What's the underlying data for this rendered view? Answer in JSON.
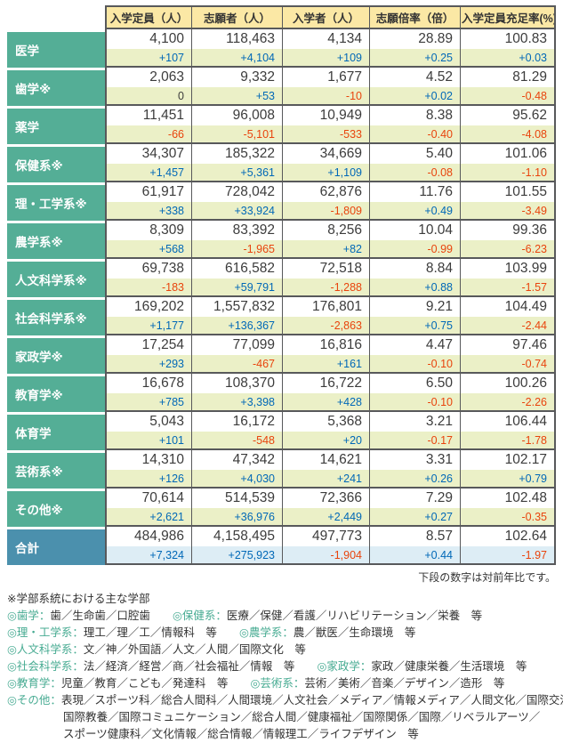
{
  "chart_data": {
    "type": "table",
    "columns": [
      "入学定員（人）",
      "志願者（人）",
      "入学者（人）",
      "志願倍率（倍）",
      "入学定員充足率(%)"
    ],
    "note": "下段の数字は対前年比です。",
    "rows": [
      {
        "label": "医学",
        "total": false,
        "main": [
          "4,100",
          "118,463",
          "4,134",
          "28.89",
          "100.83"
        ],
        "delta": [
          "+107",
          "+4,104",
          "+109",
          "+0.25",
          "+0.03"
        ]
      },
      {
        "label": "歯学※",
        "total": false,
        "main": [
          "2,063",
          "9,332",
          "1,677",
          "4.52",
          "81.29"
        ],
        "delta": [
          "0",
          "+53",
          "-10",
          "+0.02",
          "-0.48"
        ]
      },
      {
        "label": "薬学",
        "total": false,
        "main": [
          "11,451",
          "96,008",
          "10,949",
          "8.38",
          "95.62"
        ],
        "delta": [
          "-66",
          "-5,101",
          "-533",
          "-0.40",
          "-4.08"
        ]
      },
      {
        "label": "保健系※",
        "total": false,
        "main": [
          "34,307",
          "185,322",
          "34,669",
          "5.40",
          "101.06"
        ],
        "delta": [
          "+1,457",
          "+5,361",
          "+1,109",
          "-0.08",
          "-1.10"
        ]
      },
      {
        "label": "理・工学系※",
        "total": false,
        "main": [
          "61,917",
          "728,042",
          "62,876",
          "11.76",
          "101.55"
        ],
        "delta": [
          "+338",
          "+33,924",
          "-1,809",
          "+0.49",
          "-3.49"
        ]
      },
      {
        "label": "農学系※",
        "total": false,
        "main": [
          "8,309",
          "83,392",
          "8,256",
          "10.04",
          "99.36"
        ],
        "delta": [
          "+568",
          "-1,965",
          "+82",
          "-0.99",
          "-6.23"
        ]
      },
      {
        "label": "人文科学系※",
        "total": false,
        "main": [
          "69,738",
          "616,582",
          "72,518",
          "8.84",
          "103.99"
        ],
        "delta": [
          "-183",
          "+59,791",
          "-1,288",
          "+0.88",
          "-1.57"
        ]
      },
      {
        "label": "社会科学系※",
        "total": false,
        "main": [
          "169,202",
          "1,557,832",
          "176,801",
          "9.21",
          "104.49"
        ],
        "delta": [
          "+1,177",
          "+136,367",
          "-2,863",
          "+0.75",
          "-2.44"
        ]
      },
      {
        "label": "家政学※",
        "total": false,
        "main": [
          "17,254",
          "77,099",
          "16,816",
          "4.47",
          "97.46"
        ],
        "delta": [
          "+293",
          "-467",
          "+161",
          "-0.10",
          "-0.74"
        ]
      },
      {
        "label": "教育学※",
        "total": false,
        "main": [
          "16,678",
          "108,370",
          "16,722",
          "6.50",
          "100.26"
        ],
        "delta": [
          "+785",
          "+3,398",
          "+428",
          "-0.10",
          "-2.26"
        ]
      },
      {
        "label": "体育学",
        "total": false,
        "main": [
          "5,043",
          "16,172",
          "5,368",
          "3.21",
          "106.44"
        ],
        "delta": [
          "+101",
          "-548",
          "+20",
          "-0.17",
          "-1.78"
        ]
      },
      {
        "label": "芸術系※",
        "total": false,
        "main": [
          "14,310",
          "47,342",
          "14,621",
          "3.31",
          "102.17"
        ],
        "delta": [
          "+126",
          "+4,030",
          "+241",
          "+0.26",
          "+0.79"
        ]
      },
      {
        "label": "その他※",
        "total": false,
        "main": [
          "70,614",
          "514,539",
          "72,366",
          "7.29",
          "102.48"
        ],
        "delta": [
          "+2,621",
          "+36,976",
          "+2,449",
          "+0.27",
          "-0.35"
        ]
      },
      {
        "label": "合計",
        "total": true,
        "main": [
          "484,986",
          "4,158,495",
          "497,773",
          "8.57",
          "102.64"
        ],
        "delta": [
          "+7,324",
          "+275,923",
          "-1,904",
          "+0.44",
          "-1.97"
        ]
      }
    ]
  },
  "footnotes": {
    "title": "※学部系統における主な学部",
    "lines": [
      {
        "indent": false,
        "segments": [
          {
            "type": "label",
            "text": "◎歯学："
          },
          {
            "type": "text",
            "text": "歯／生命歯／口腔歯　　"
          },
          {
            "type": "label",
            "text": "◎保健系："
          },
          {
            "type": "text",
            "text": "医療／保健／看護／リハビリテーション／栄養　等"
          }
        ]
      },
      {
        "indent": false,
        "segments": [
          {
            "type": "label",
            "text": "◎理・工学系："
          },
          {
            "type": "text",
            "text": "理工／理／工／情報科　等　　"
          },
          {
            "type": "label",
            "text": "◎農学系："
          },
          {
            "type": "text",
            "text": "農／獣医／生命環境　等"
          }
        ]
      },
      {
        "indent": false,
        "segments": [
          {
            "type": "label",
            "text": "◎人文科学系："
          },
          {
            "type": "text",
            "text": "文／神／外国語／人文／人間／国際文化　等"
          }
        ]
      },
      {
        "indent": false,
        "segments": [
          {
            "type": "label",
            "text": "◎社会科学系："
          },
          {
            "type": "text",
            "text": "法／経済／経営／商／社会福祉／情報　等　　"
          },
          {
            "type": "label",
            "text": "◎家政学："
          },
          {
            "type": "text",
            "text": "家政／健康栄養／生活環境　等"
          }
        ]
      },
      {
        "indent": false,
        "segments": [
          {
            "type": "label",
            "text": "◎教育学："
          },
          {
            "type": "text",
            "text": "児童／教育／こども／発達科　等　　"
          },
          {
            "type": "label",
            "text": "◎芸術系："
          },
          {
            "type": "text",
            "text": "芸術／美術／音楽／デザイン／造形　等"
          }
        ]
      },
      {
        "indent": false,
        "segments": [
          {
            "type": "label",
            "text": "◎その他："
          },
          {
            "type": "text",
            "text": "表現／スポーツ科／総合人間科／人間環境／人文社会／メディア／情報メディア／人間文化／国際交流／"
          }
        ]
      },
      {
        "indent": true,
        "segments": [
          {
            "type": "text",
            "text": "国際教養／国際コミュニケーション／総合人間／健康福祉／国際関係／国際／リベラルアーツ／"
          }
        ]
      },
      {
        "indent": true,
        "segments": [
          {
            "type": "text",
            "text": "スポーツ健康科／文化情報／総合情報／情報理工／ライフデザイン　等"
          }
        ]
      }
    ]
  },
  "colors": {
    "row_header_teal": "#54ae96",
    "total_header_blue": "#4b90ad",
    "column_header_yellow": "#fbe8a5",
    "delta_row_green": "#ebf0c7",
    "total_delta_blue": "#ddedf5",
    "positive_blue": "#0068b7",
    "negative_red": "#e9440d",
    "border_gray": "#58595b",
    "footnote_label_teal": "#47ab92"
  }
}
